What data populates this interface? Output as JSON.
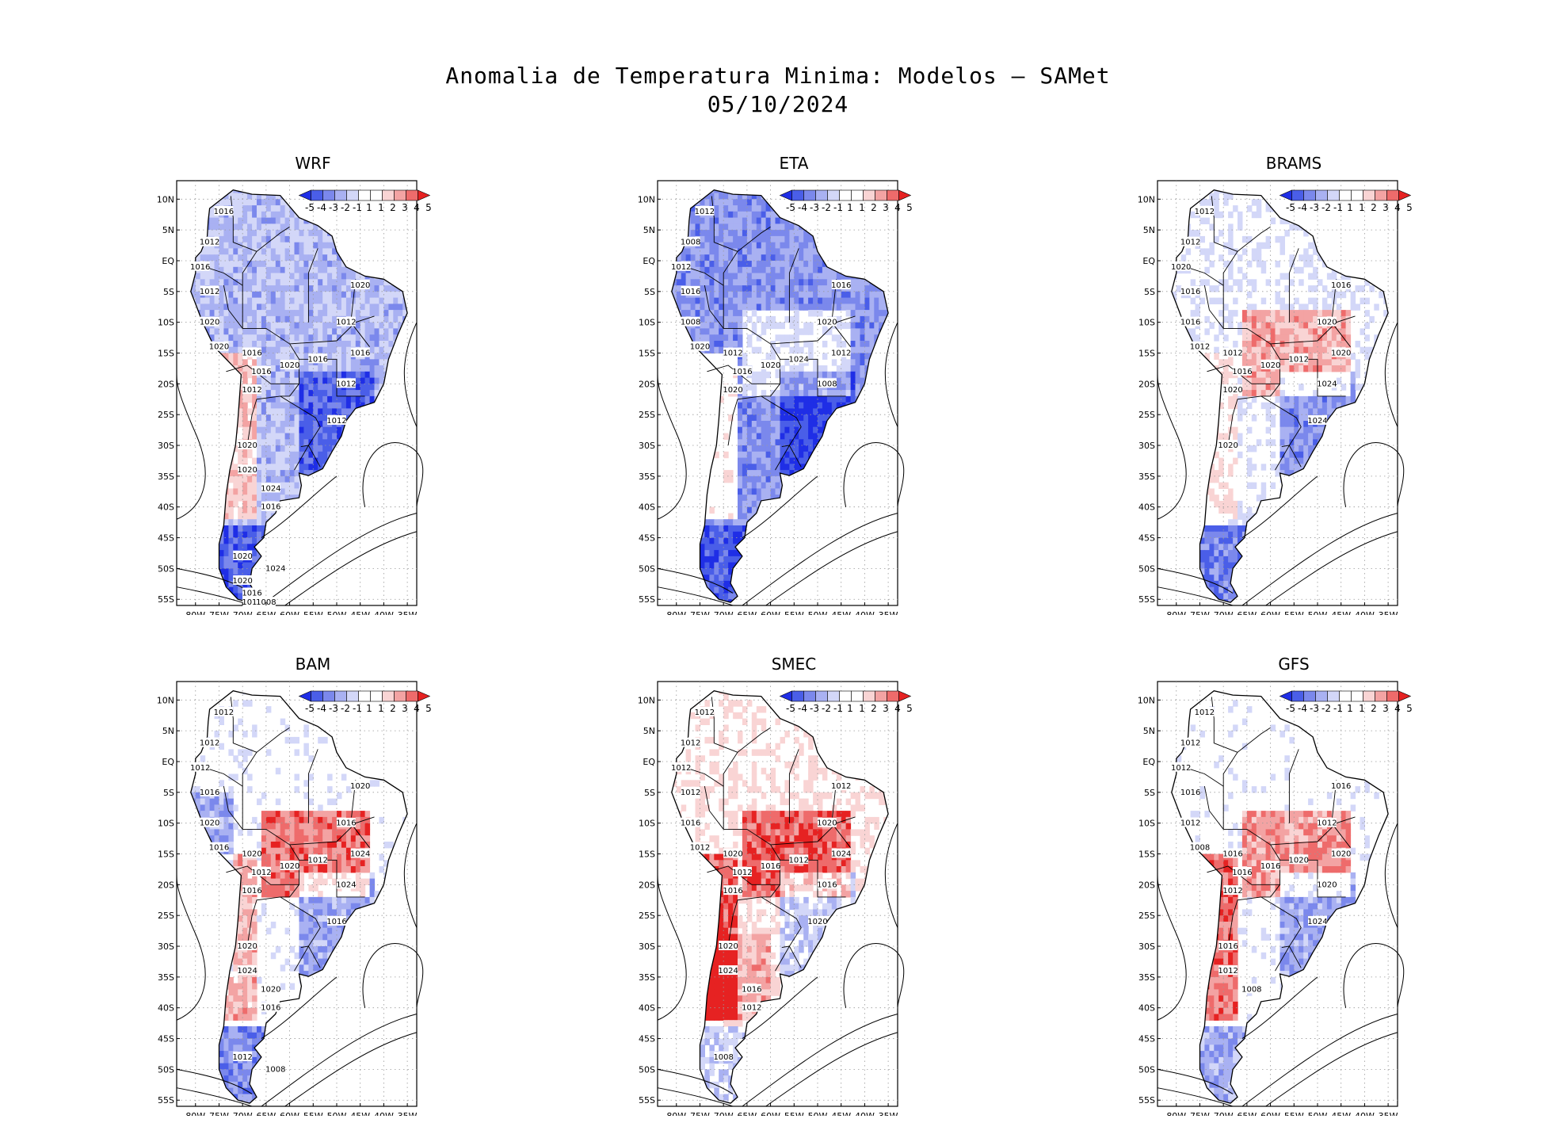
{
  "title_line1": "Anomalia de Temperatura Minima: Modelos — SAMet",
  "title_line2": "05/10/2024",
  "lat_labels": [
    "10N",
    "5N",
    "EQ",
    "5S",
    "10S",
    "15S",
    "20S",
    "25S",
    "30S",
    "35S",
    "40S",
    "45S",
    "50S",
    "55S"
  ],
  "lon_labels": [
    "80W",
    "75W",
    "70W",
    "65W",
    "60W",
    "55W",
    "50W",
    "45W",
    "40W",
    "35W"
  ],
  "legend_labels": [
    "-5",
    "-4",
    "-3",
    "-2",
    "-1",
    "1",
    "1",
    "2",
    "3",
    "4",
    "5"
  ],
  "legend_colors": [
    "#1f2ee6",
    "#4a5ee8",
    "#7b88ec",
    "#a9b1f2",
    "#d3d7f8",
    "#ffffff",
    "#ffffff",
    "#f9d4d4",
    "#f3a3a3",
    "#ee6b6b",
    "#e62222"
  ],
  "panels": [
    {
      "name": "WRF",
      "bias": "cool",
      "isobars": [
        "1016",
        "1012",
        "1016",
        "1012",
        "1020",
        "1020",
        "1016",
        "1016",
        "1012",
        "1020",
        "1016",
        "1012",
        "1020",
        "1016",
        "1012",
        "1012",
        "1020",
        "1020",
        "1024",
        "1016",
        "1020",
        "1024",
        "1020",
        "1016",
        "1012",
        "1008"
      ]
    },
    {
      "name": "ETA",
      "bias": "very-cool",
      "isobars": [
        "1012",
        "1008",
        "1012",
        "1016",
        "1008",
        "1020",
        "1012",
        "1016",
        "1020",
        "1020",
        "1024",
        "1020",
        "1016",
        "1012",
        "1008"
      ]
    },
    {
      "name": "BRAMS",
      "bias": "warm-center",
      "isobars": [
        "1012",
        "1012",
        "1020",
        "1016",
        "1016",
        "1012",
        "1012",
        "1016",
        "1020",
        "1020",
        "1012",
        "1020",
        "1016",
        "1020",
        "1024",
        "1024",
        "1020"
      ]
    },
    {
      "name": "BAM",
      "bias": "warm",
      "isobars": [
        "1012",
        "1012",
        "1012",
        "1016",
        "1020",
        "1016",
        "1020",
        "1012",
        "1016",
        "1020",
        "1012",
        "1016",
        "1020",
        "1024",
        "1024",
        "1016",
        "1020",
        "1024",
        "1020",
        "1016",
        "1012",
        "1008"
      ]
    },
    {
      "name": "SMEC",
      "bias": "very-warm",
      "isobars": [
        "1012",
        "1012",
        "1012",
        "1012",
        "1016",
        "1012",
        "1020",
        "1012",
        "1016",
        "1016",
        "1012",
        "1020",
        "1012",
        "1024",
        "1016",
        "1020",
        "1020",
        "1024",
        "1016",
        "1012",
        "1008"
      ]
    },
    {
      "name": "GFS",
      "bias": "warm-west",
      "isobars": [
        "1012",
        "1012",
        "1012",
        "1016",
        "1012",
        "1008",
        "1016",
        "1016",
        "1012",
        "1016",
        "1020",
        "1012",
        "1016",
        "1020",
        "1020",
        "1024",
        "1016",
        "1012",
        "1008"
      ]
    }
  ]
}
